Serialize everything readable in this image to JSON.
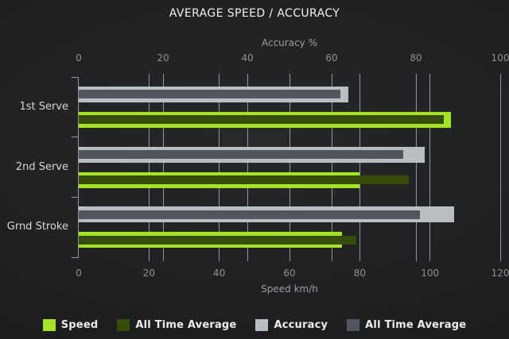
{
  "title": "AVERAGE SPEED / ACCURACY",
  "chart_data": {
    "type": "bar",
    "orientation": "horizontal",
    "title": "AVERAGE SPEED / ACCURACY",
    "categories": [
      "1st Serve",
      "2nd Serve",
      "Grnd Stroke"
    ],
    "axes": {
      "top": {
        "title": "Accuracy %",
        "min": 0,
        "max": 100,
        "ticks": [
          0,
          20,
          40,
          60,
          80,
          100
        ]
      },
      "bottom": {
        "title": "Speed km/h",
        "min": 0,
        "max": 120,
        "ticks": [
          0,
          20,
          40,
          60,
          80,
          100,
          120
        ]
      }
    },
    "series": [
      {
        "name": "Speed",
        "axis": "bottom",
        "layer": "outer",
        "color": "#a4e423",
        "values": [
          106,
          80,
          75
        ]
      },
      {
        "name": "All Time Average",
        "axis": "bottom",
        "layer": "inner",
        "color": "#374c08",
        "values": [
          104,
          94,
          79
        ]
      },
      {
        "name": "Accuracy",
        "axis": "top",
        "layer": "outer",
        "color": "#babec0",
        "values": [
          64,
          82,
          89
        ]
      },
      {
        "name": "All Time Average",
        "axis": "top",
        "layer": "inner",
        "color": "#51565e",
        "values": [
          62,
          77,
          81
        ]
      }
    ],
    "legend": {
      "position": "bottom",
      "items": [
        {
          "label": "Speed",
          "color": "#a4e423"
        },
        {
          "label": "All Time Average",
          "color": "#374c08"
        },
        {
          "label": "Accuracy",
          "color": "#babec0"
        },
        {
          "label": "All Time Average",
          "color": "#51565e"
        }
      ]
    },
    "grid": true,
    "background": "#1e1f21"
  }
}
